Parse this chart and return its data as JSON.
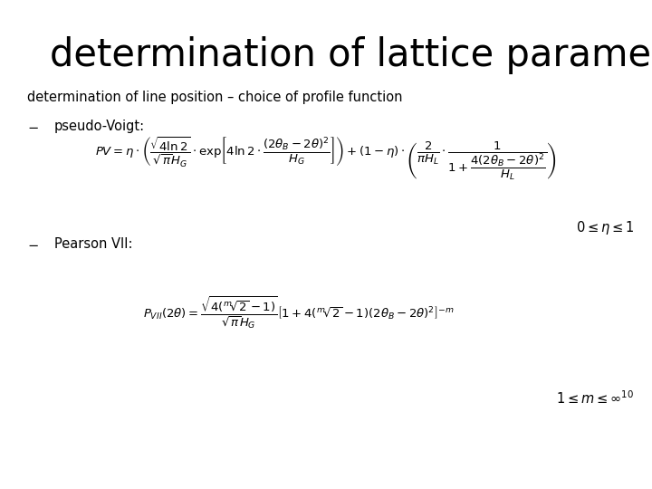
{
  "title": "determination of lattice parameters",
  "subtitle": "determination of line position – choice of profile function",
  "bullet1": "pseudo-Voigt:",
  "bullet2": "Pearson VII:",
  "eta_range": "$0 \\leq \\eta \\leq 1$",
  "m_range": "$1 \\leq m \\leq \\infty^{10}$",
  "bg_color": "#ffffff",
  "title_fontsize": 30,
  "subtitle_fontsize": 10.5,
  "bullet_fontsize": 10.5,
  "formula_fontsize": 9.5,
  "range_fontsize": 10.5
}
